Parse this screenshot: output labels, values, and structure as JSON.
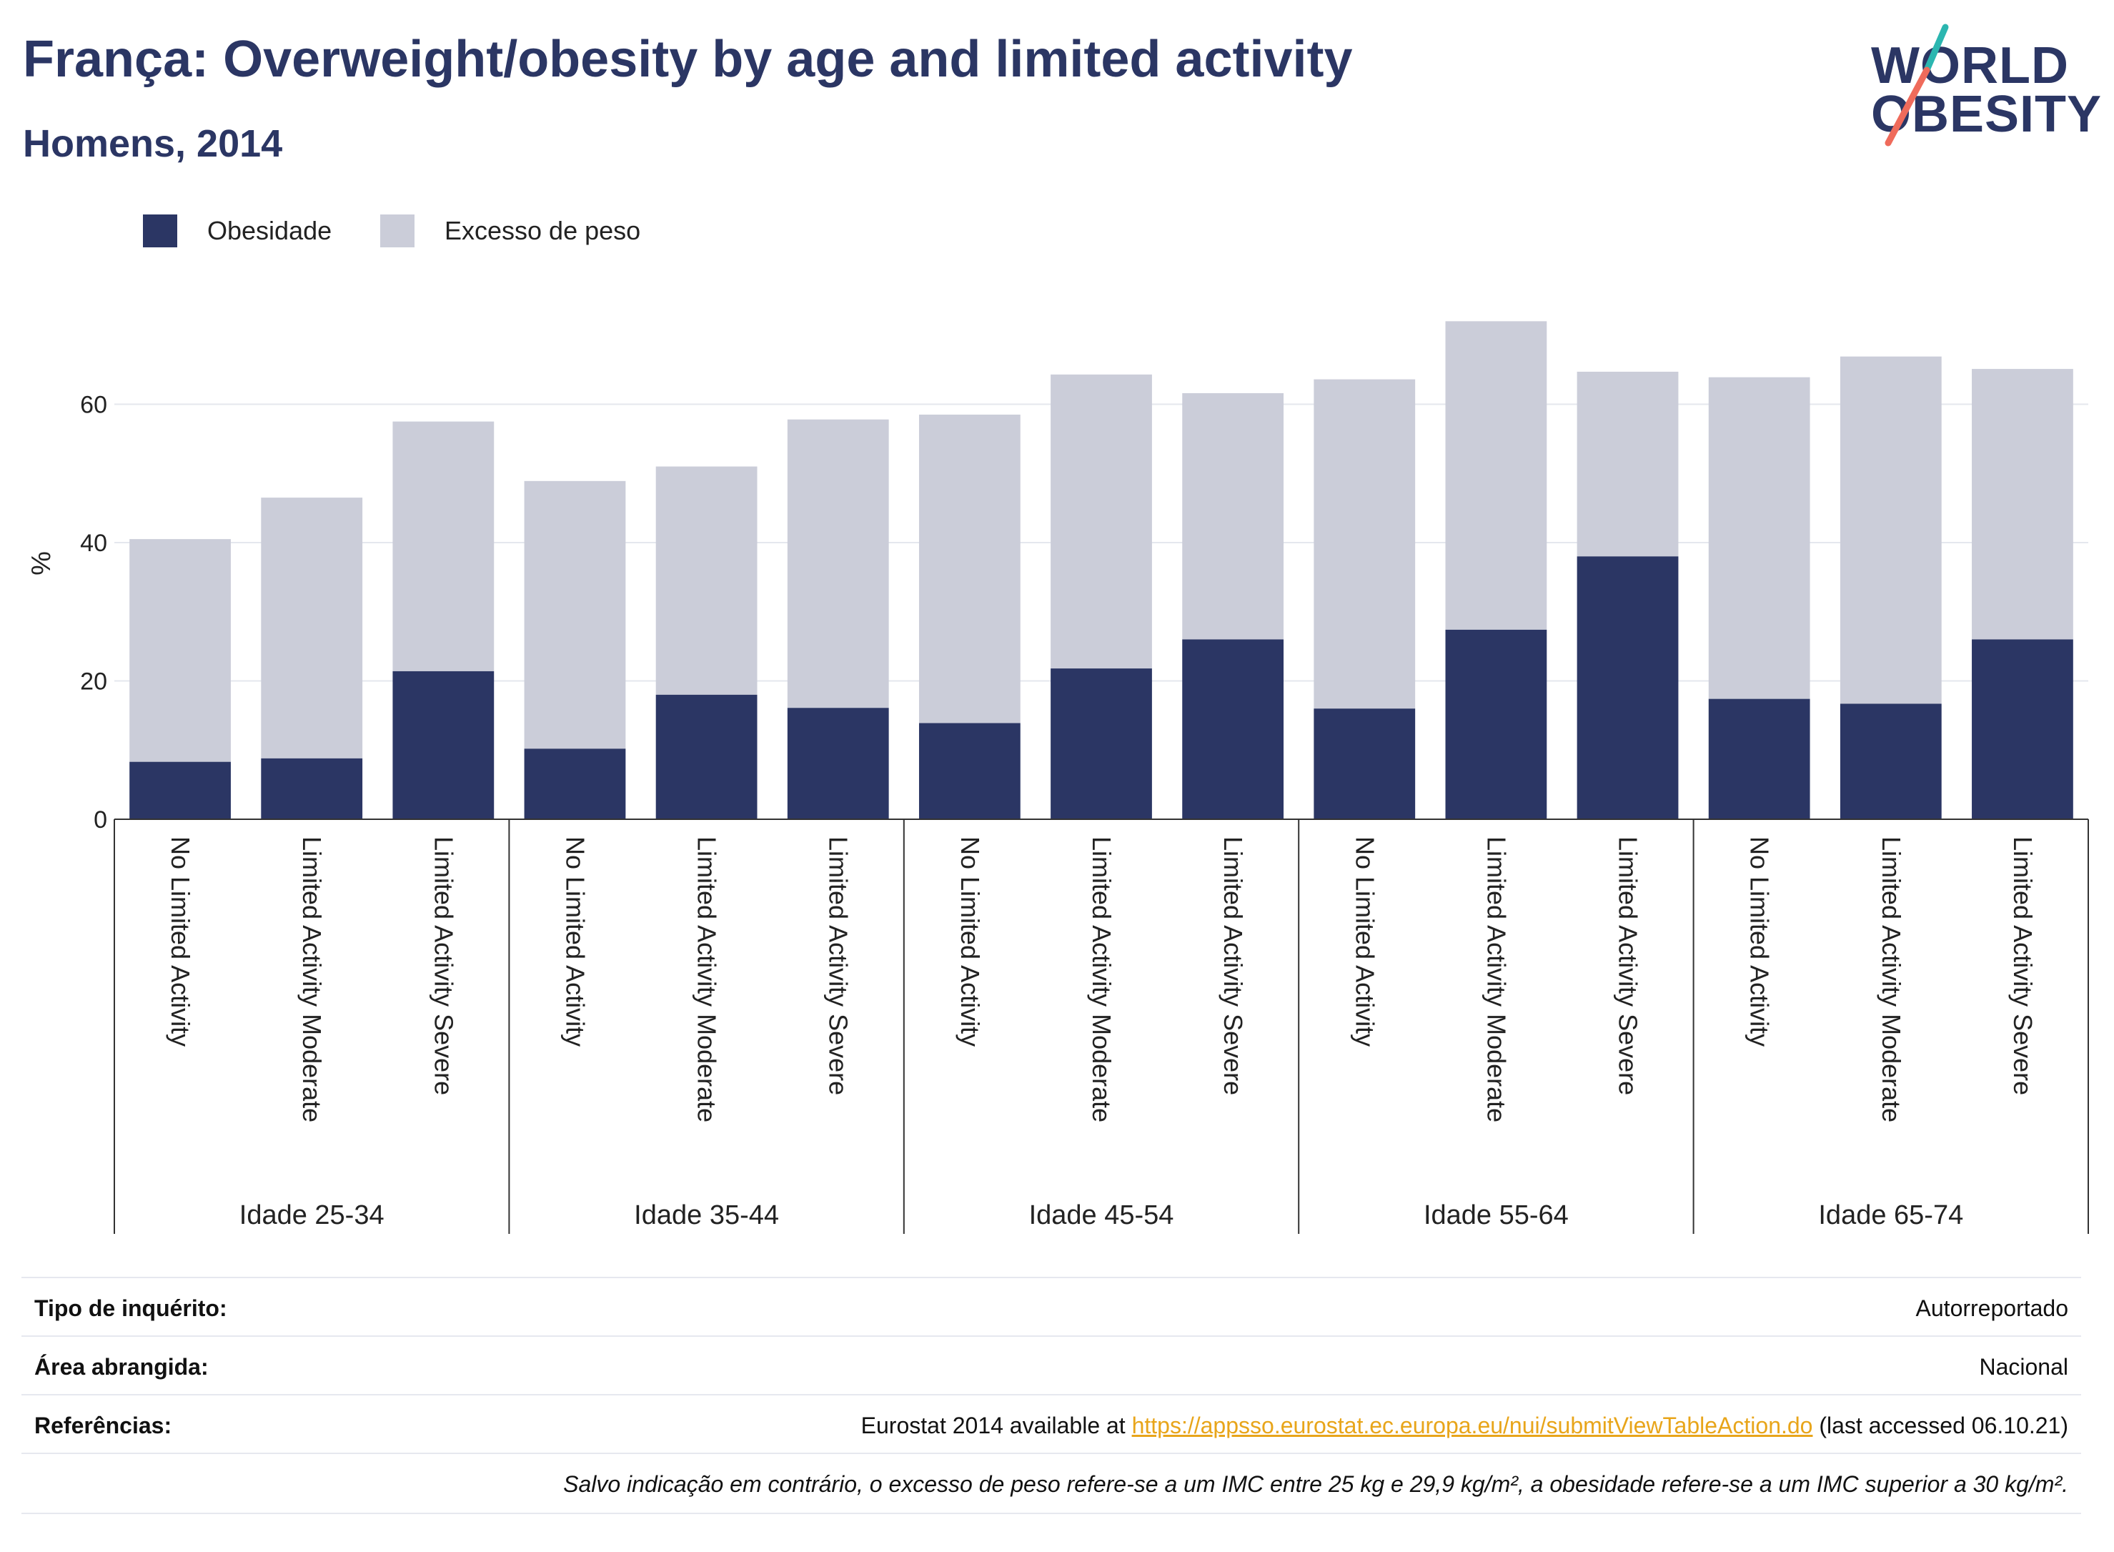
{
  "header": {
    "title": "França: Overweight/obesity by age and limited activity",
    "subtitle": "Homens, 2014"
  },
  "logo": {
    "line1": "WORLD",
    "line2": "OBESITY",
    "colors": {
      "text": "#2b3664",
      "slash_top": "#2bb6b0",
      "slash_bottom": "#ef6b5b"
    }
  },
  "colors": {
    "obesity": "#2b3664",
    "overweight": "#cbcdd9",
    "grid": "#e5e7ee",
    "axis": "#333333"
  },
  "legend": [
    {
      "label": "Obesidade",
      "color": "#2b3664"
    },
    {
      "label": "Excesso de peso",
      "color": "#cbcdd9"
    }
  ],
  "chart_data": {
    "type": "bar",
    "stacked": true,
    "ylabel": "%",
    "ylim": [
      0,
      74
    ],
    "yticks": [
      0,
      20,
      40,
      60
    ],
    "grid": true,
    "legend_position": "top-left",
    "groups": [
      {
        "label": "Idade 25-34",
        "categories": [
          "No Limited Activity",
          "Limited Activity Moderate",
          "Limited Activity Severe"
        ]
      },
      {
        "label": "Idade 35-44",
        "categories": [
          "No Limited Activity",
          "Limited Activity Moderate",
          "Limited Activity Severe"
        ]
      },
      {
        "label": "Idade 45-54",
        "categories": [
          "No Limited Activity",
          "Limited Activity Moderate",
          "Limited Activity Severe"
        ]
      },
      {
        "label": "Idade 55-64",
        "categories": [
          "No Limited Activity",
          "Limited Activity Moderate",
          "Limited Activity Severe"
        ]
      },
      {
        "label": "Idade 65-74",
        "categories": [
          "No Limited Activity",
          "Limited Activity Moderate",
          "Limited Activity Severe"
        ]
      }
    ],
    "series": [
      {
        "name": "Obesidade",
        "values": [
          8.3,
          8.8,
          21.4,
          10.2,
          18.0,
          16.1,
          13.9,
          21.8,
          26.0,
          16.0,
          27.4,
          38.0,
          17.4,
          16.7,
          26.0
        ]
      },
      {
        "name": "Excesso de peso",
        "values": [
          32.2,
          37.7,
          36.1,
          38.7,
          33.0,
          41.7,
          44.6,
          42.5,
          35.6,
          47.6,
          44.6,
          26.7,
          46.5,
          50.2,
          39.1
        ]
      }
    ]
  },
  "footer": {
    "survey_type_label": "Tipo de inquérito:",
    "survey_type_value": "Autorreportado",
    "area_label": "Área abrangida:",
    "area_value": "Nacional",
    "references_label": "Referências:",
    "references_prefix": "Eurostat 2014 available at ",
    "references_link": "https://appsso.eurostat.ec.europa.eu/nui/submitViewTableAction.do",
    "references_suffix": " (last accessed 06.10.21)",
    "note": "Salvo indicação em contrário, o excesso de peso refere-se a um IMC entre 25 kg e 29,9 kg/m², a obesidade refere-se a um IMC superior a 30 kg/m²."
  }
}
